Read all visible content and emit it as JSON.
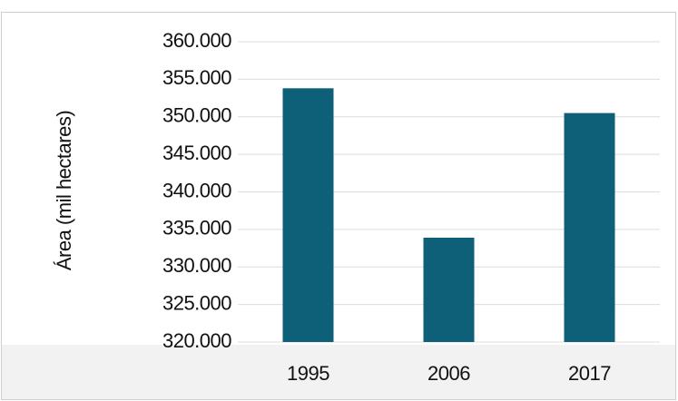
{
  "chart_data": {
    "type": "bar",
    "y_label": "Área (mil hectares)",
    "categories": [
      "1995",
      "2006",
      "2017"
    ],
    "values": [
      353800,
      333900,
      350500
    ],
    "color": "#0e5f78",
    "ylim": [
      320000,
      360000
    ],
    "yticks": [
      {
        "value": 320000,
        "label": "320.000"
      },
      {
        "value": 325000,
        "label": "325.000"
      },
      {
        "value": 330000,
        "label": "330.000"
      },
      {
        "value": 335000,
        "label": "335.000"
      },
      {
        "value": 340000,
        "label": "340.000"
      },
      {
        "value": 345000,
        "label": "345.000"
      },
      {
        "value": 350000,
        "label": "350.000"
      },
      {
        "value": 355000,
        "label": "355.000"
      },
      {
        "value": 360000,
        "label": "360.000"
      }
    ],
    "grid": true
  }
}
